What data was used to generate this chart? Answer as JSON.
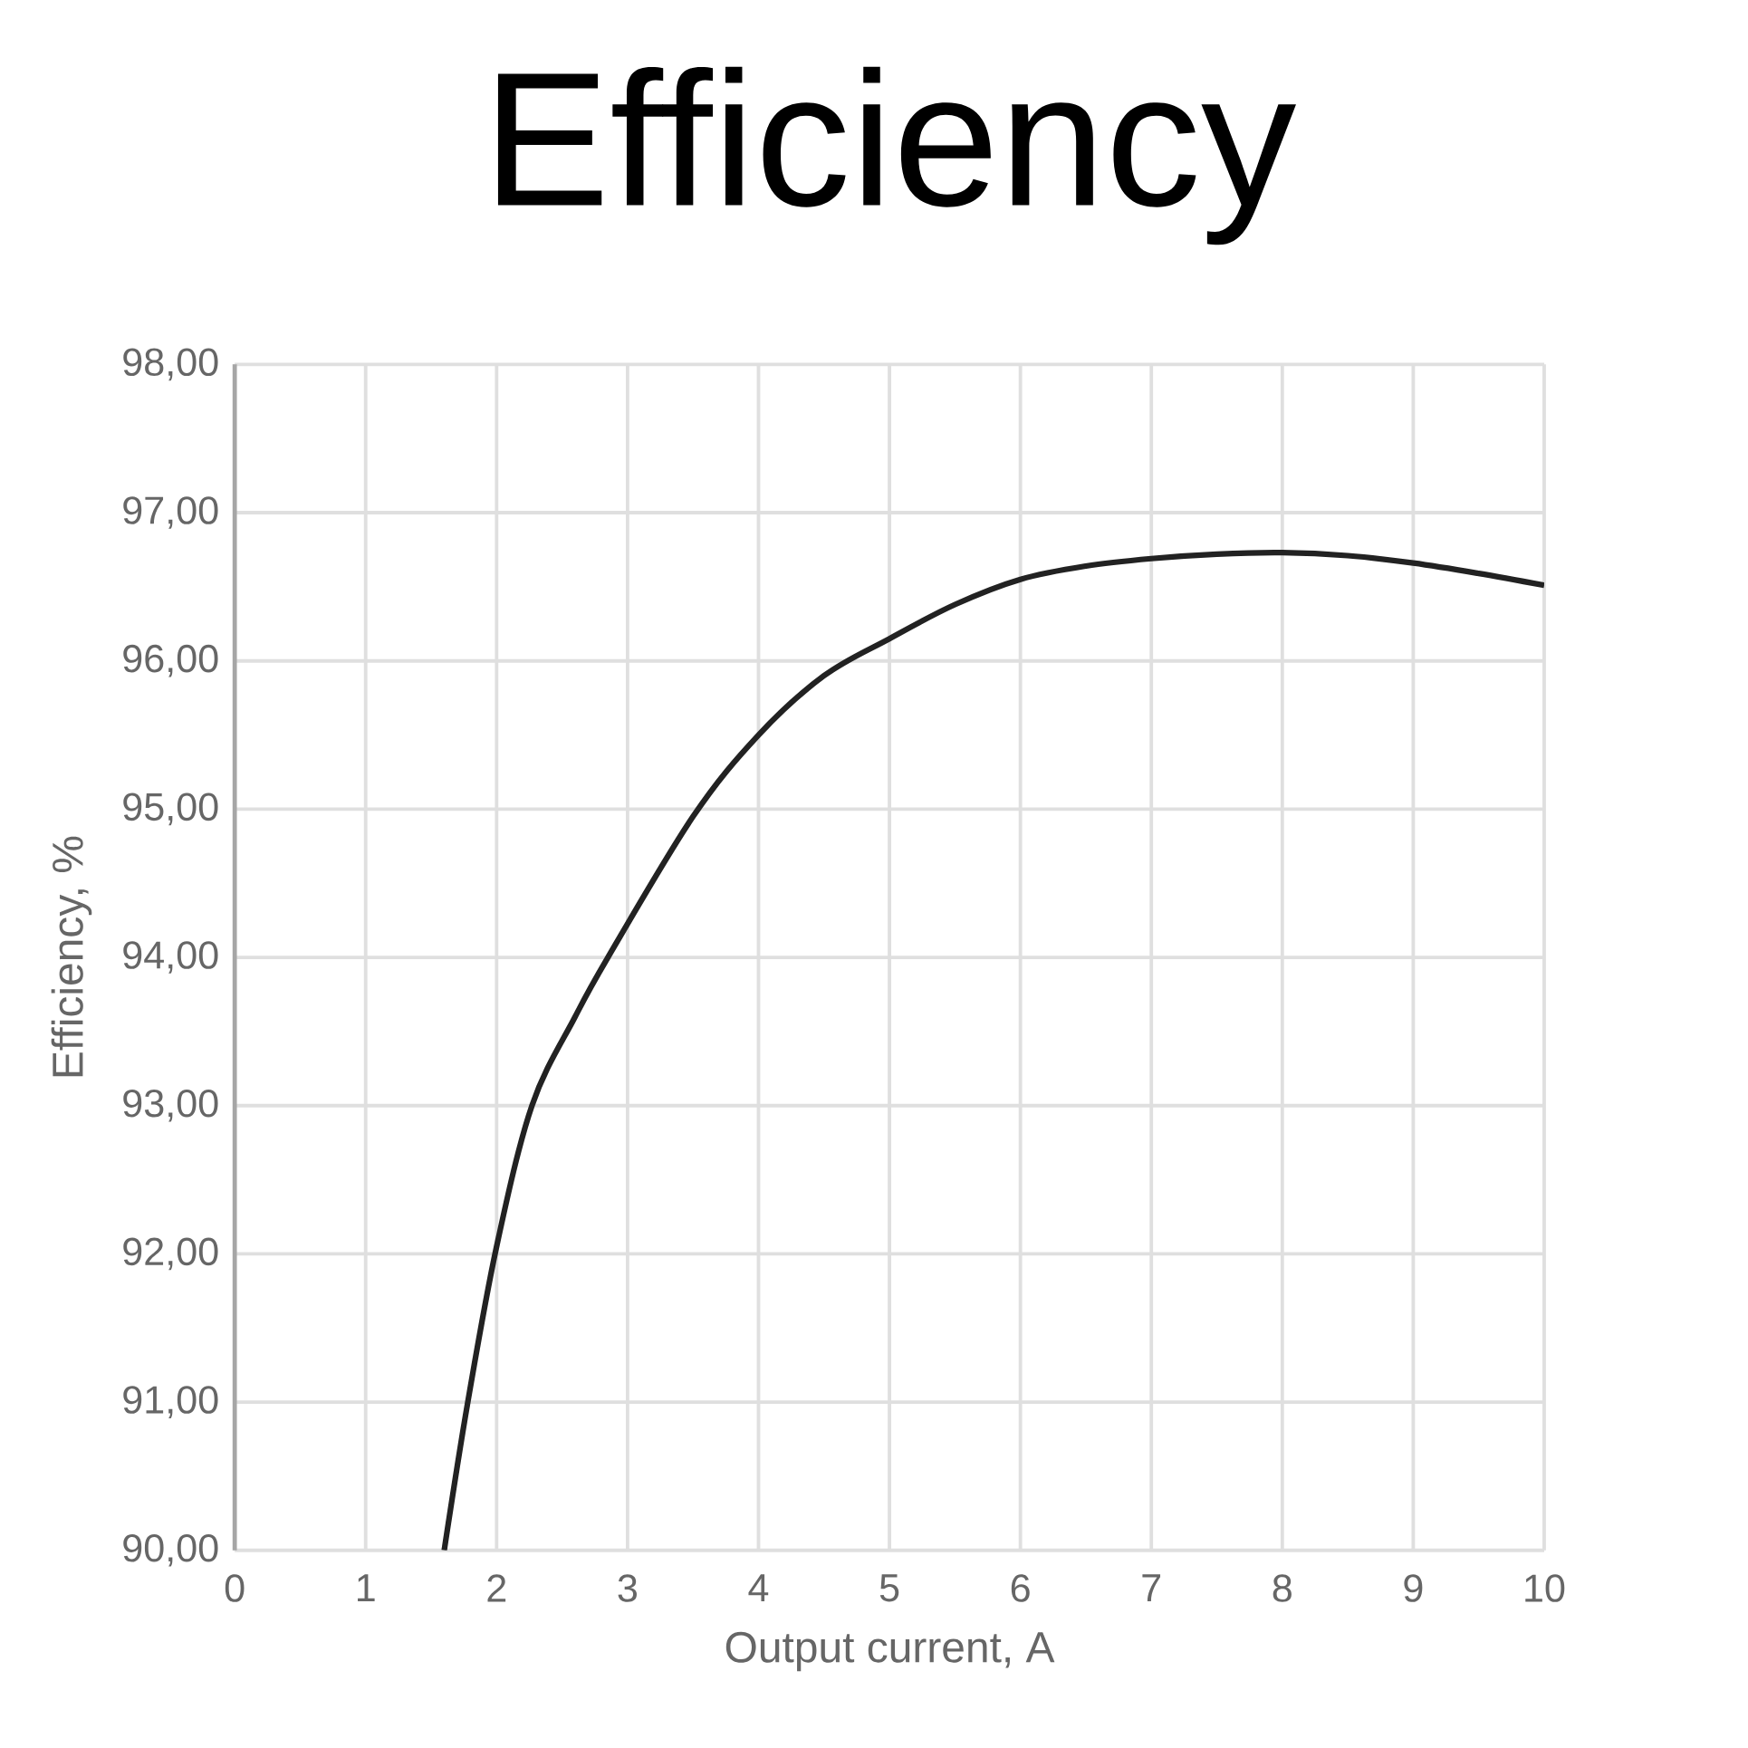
{
  "chart_data": {
    "type": "line",
    "title": "Efficiency",
    "xlabel": "Output current, A",
    "ylabel": "Efficiency, %",
    "x": [
      1.6,
      1.78,
      2,
      2.27,
      2.6,
      2.85,
      3.5,
      4,
      4.5,
      5,
      5.5,
      6,
      6.5,
      7,
      7.5,
      8,
      8.5,
      9,
      9.5,
      10
    ],
    "series": [
      {
        "color": "#222222",
        "values": [
          90,
          91,
          92.05,
          93,
          93.6,
          94,
          94.95,
          95.5,
          95.9,
          96.15,
          96.38,
          96.55,
          96.64,
          96.69,
          96.72,
          96.73,
          96.71,
          96.66,
          96.59,
          96.51
        ]
      }
    ],
    "xlim": [
      0,
      10
    ],
    "ylim": [
      90,
      98
    ],
    "xticks": [
      0,
      1,
      2,
      3,
      4,
      5,
      6,
      7,
      8,
      9,
      10
    ],
    "yticks": [
      {
        "value": 90,
        "label": "90,00"
      },
      {
        "value": 91,
        "label": "91,00"
      },
      {
        "value": 92,
        "label": "92,00"
      },
      {
        "value": 93,
        "label": "93,00"
      },
      {
        "value": 94,
        "label": "94,00"
      },
      {
        "value": 95,
        "label": "95,00"
      },
      {
        "value": 96,
        "label": "96,00"
      },
      {
        "value": 97,
        "label": "97,00"
      },
      {
        "value": 98,
        "label": "98,00"
      }
    ],
    "grid": true,
    "marker": "none",
    "line_style": "solid"
  }
}
